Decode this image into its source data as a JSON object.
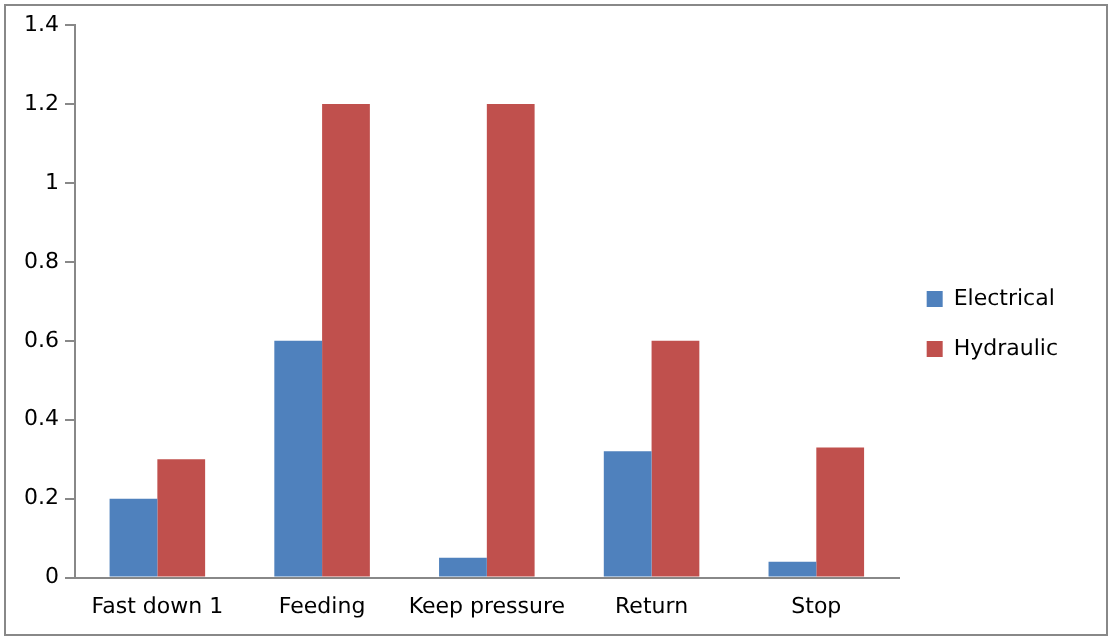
{
  "chart_data": {
    "type": "bar",
    "categories": [
      "Fast down 1",
      "Feeding",
      "Keep pressure",
      "Return",
      "Stop"
    ],
    "series": [
      {
        "name": "Electrical",
        "color": "#4f81bd",
        "values": [
          0.2,
          0.6,
          0.05,
          0.32,
          0.04
        ]
      },
      {
        "name": "Hydraulic",
        "color": "#c0504d",
        "values": [
          0.3,
          1.2,
          1.2,
          0.6,
          0.33
        ]
      }
    ],
    "ylim": [
      0,
      1.4
    ],
    "yticks": [
      0,
      0.2,
      0.4,
      0.6,
      0.8,
      1,
      1.2,
      1.4
    ],
    "grid": false,
    "legend": "right"
  }
}
